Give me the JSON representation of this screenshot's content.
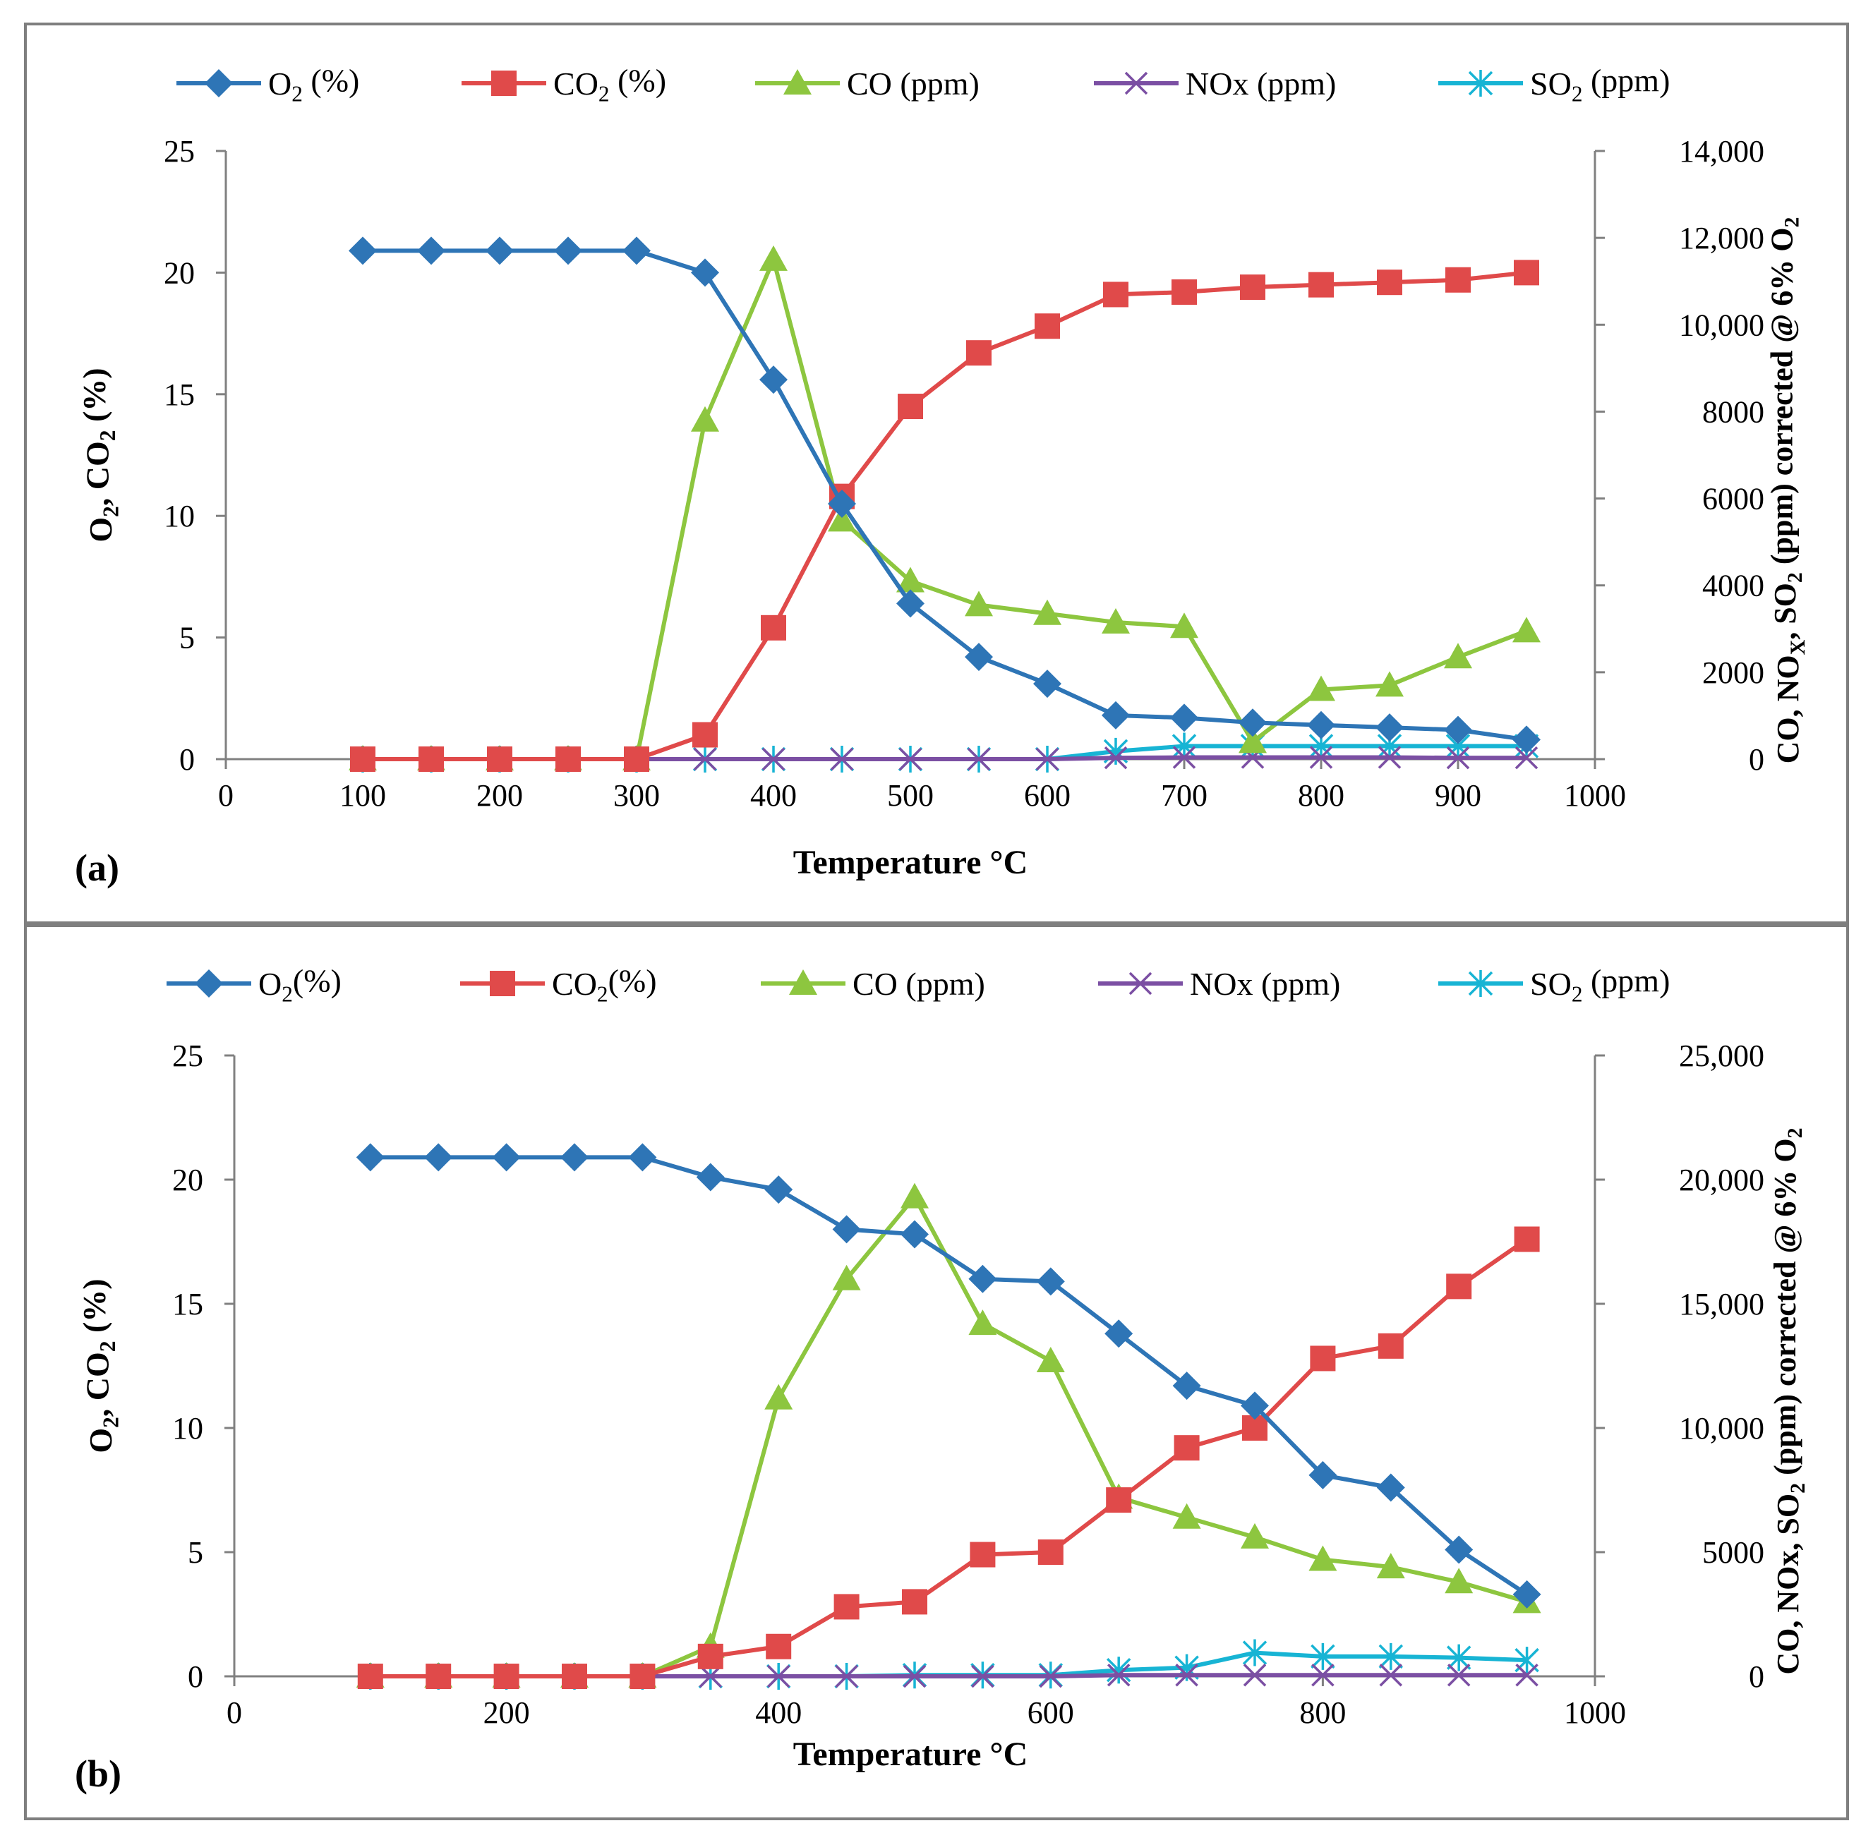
{
  "chart_data": [
    {
      "type": "line",
      "panel_label": "(a)",
      "xlabel": "Temperature °C",
      "ylabel_left": "O2, CO2 (%)",
      "ylabel_right": "CO, NOX, SO2 (ppm) corrected @ 6% O2",
      "xlim": [
        0,
        1000
      ],
      "x_ticks": [
        0,
        100,
        200,
        300,
        400,
        500,
        600,
        700,
        800,
        900,
        1000
      ],
      "x_tick_labels": [
        "0",
        "100",
        "200",
        "300",
        "400",
        "500",
        "600",
        "700",
        "800",
        "900",
        "1000"
      ],
      "ylim_left": [
        0,
        25
      ],
      "y_left_ticks": [
        0,
        5,
        10,
        15,
        20,
        25
      ],
      "y_left_tick_labels": [
        "0",
        "5",
        "10",
        "15",
        "20",
        "25"
      ],
      "ylim_right": [
        0,
        14000
      ],
      "y_right_ticks": [
        0,
        2000,
        4000,
        6000,
        8000,
        10000,
        12000,
        14000
      ],
      "y_right_tick_labels": [
        "0",
        "2000",
        "4000",
        "6000",
        "8000",
        "10,000",
        "12,000",
        "14,000"
      ],
      "legend": [
        "O2 (%)",
        "CO2 (%)",
        "CO (ppm)",
        "NOx (ppm)",
        "SO2 (ppm)"
      ],
      "legend_position": "top",
      "x": [
        100,
        150,
        200,
        250,
        300,
        350,
        400,
        450,
        500,
        550,
        600,
        650,
        700,
        750,
        800,
        850,
        900,
        950
      ],
      "series": [
        {
          "name": "O2 (%)",
          "axis": "left",
          "color": "#2e75b6",
          "marker": "diamond",
          "values": [
            20.9,
            20.9,
            20.9,
            20.9,
            20.9,
            20.0,
            15.6,
            10.5,
            6.4,
            4.2,
            3.1,
            1.8,
            1.7,
            1.5,
            1.4,
            1.3,
            1.2,
            0.8
          ]
        },
        {
          "name": "CO2 (%)",
          "axis": "left",
          "color": "#e04a4a",
          "marker": "square",
          "values": [
            0,
            0,
            0,
            0,
            0,
            1.0,
            5.4,
            10.8,
            14.5,
            16.7,
            17.8,
            19.1,
            19.2,
            19.4,
            19.5,
            19.6,
            19.7,
            20.0
          ]
        },
        {
          "name": "CO (ppm)",
          "axis": "right",
          "color": "#8dc63f",
          "marker": "triangle",
          "values": [
            0,
            0,
            0,
            0,
            0,
            7800,
            11500,
            5500,
            4100,
            3550,
            3350,
            3150,
            3050,
            400,
            1600,
            1700,
            2350,
            2950
          ]
        },
        {
          "name": "NOx (ppm)",
          "axis": "right",
          "color": "#7b4fa3",
          "marker": "x",
          "values": [
            0,
            0,
            0,
            0,
            0,
            0,
            0,
            0,
            0,
            0,
            0,
            30,
            40,
            40,
            40,
            40,
            30,
            30
          ]
        },
        {
          "name": "SO2 (ppm)",
          "axis": "right",
          "color": "#17b4d4",
          "marker": "star",
          "values": [
            0,
            0,
            0,
            0,
            0,
            0,
            0,
            0,
            0,
            0,
            0,
            180,
            300,
            300,
            300,
            300,
            300,
            300
          ]
        }
      ]
    },
    {
      "type": "line",
      "panel_label": "(b)",
      "xlabel": "Temperature °C",
      "ylabel_left": "O2, CO2 (%)",
      "ylabel_right": "CO, NOx, SO2 (ppm) corrected @ 6% O2",
      "xlim": [
        0,
        1000
      ],
      "x_ticks": [
        0,
        200,
        400,
        600,
        800,
        1000
      ],
      "x_tick_labels": [
        "0",
        "200",
        "400",
        "600",
        "800",
        "1000"
      ],
      "ylim_left": [
        0,
        25
      ],
      "y_left_ticks": [
        0,
        5,
        10,
        15,
        20,
        25
      ],
      "y_left_tick_labels": [
        "0",
        "5",
        "10",
        "15",
        "20",
        "25"
      ],
      "ylim_right": [
        0,
        25000
      ],
      "y_right_ticks": [
        0,
        5000,
        10000,
        15000,
        20000,
        25000
      ],
      "y_right_tick_labels": [
        "0",
        "5000",
        "10,000",
        "15,000",
        "20,000",
        "25,000"
      ],
      "legend": [
        "O2(%)",
        "CO2(%)",
        "CO (ppm)",
        "NOx (ppm)",
        "SO2 (ppm)"
      ],
      "legend_position": "top",
      "x": [
        100,
        150,
        200,
        250,
        300,
        350,
        400,
        450,
        500,
        550,
        600,
        650,
        700,
        750,
        800,
        850,
        900,
        950
      ],
      "series": [
        {
          "name": "O2(%)",
          "axis": "left",
          "color": "#2e75b6",
          "marker": "diamond",
          "values": [
            20.9,
            20.9,
            20.9,
            20.9,
            20.9,
            20.1,
            19.6,
            18.0,
            17.8,
            16.0,
            15.9,
            13.8,
            11.7,
            10.9,
            8.1,
            7.6,
            5.1,
            3.3
          ]
        },
        {
          "name": "CO2(%)",
          "axis": "left",
          "color": "#e04a4a",
          "marker": "square",
          "values": [
            0,
            0,
            0,
            0,
            0,
            0.8,
            1.2,
            2.8,
            3.0,
            4.9,
            5.0,
            7.1,
            9.2,
            10.0,
            12.8,
            13.3,
            15.7,
            17.6
          ]
        },
        {
          "name": "CO (ppm)",
          "axis": "right",
          "color": "#8dc63f",
          "marker": "triangle",
          "values": [
            0,
            0,
            0,
            0,
            0,
            1200,
            11200,
            16000,
            19300,
            14200,
            12700,
            7200,
            6400,
            5600,
            4700,
            4400,
            3800,
            3000
          ]
        },
        {
          "name": "NOx (ppm)",
          "axis": "right",
          "color": "#7b4fa3",
          "marker": "x",
          "values": [
            0,
            0,
            0,
            0,
            0,
            0,
            0,
            0,
            0,
            0,
            0,
            50,
            50,
            50,
            50,
            50,
            50,
            50
          ]
        },
        {
          "name": "SO2 (ppm)",
          "axis": "right",
          "color": "#17b4d4",
          "marker": "star",
          "values": [
            0,
            0,
            0,
            0,
            0,
            0,
            0,
            0,
            50,
            50,
            50,
            250,
            350,
            950,
            800,
            800,
            750,
            650
          ]
        }
      ]
    }
  ]
}
